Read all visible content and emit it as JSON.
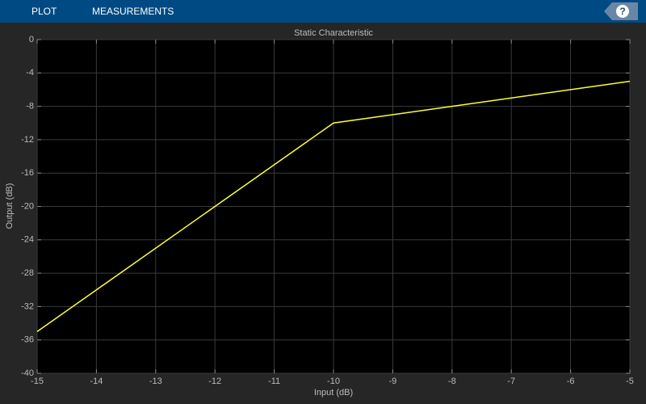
{
  "toolbar": {
    "tabs": [
      "PLOT",
      "MEASUREMENTS"
    ],
    "help": "?"
  },
  "chart_data": {
    "type": "line",
    "title": "Static Characteristic",
    "x_label": "Input (dB)",
    "y_label": "Output (dB)",
    "series": [
      {
        "name": "Static Characteristic",
        "color": "#ffff33",
        "x": [
          -15,
          -10,
          -5
        ],
        "values": [
          -35,
          -10,
          -5
        ]
      }
    ],
    "xlim": [
      -15,
      -5
    ],
    "xticks": [
      -15,
      -14,
      -13,
      -12,
      -11,
      -10,
      -9,
      -8,
      -7,
      -6,
      -5
    ],
    "ylim": [
      -40,
      0
    ],
    "yticks": [
      0,
      -4,
      -8,
      -12,
      -16,
      -20,
      -24,
      -28,
      -32,
      -36,
      -40
    ],
    "grid": true
  }
}
